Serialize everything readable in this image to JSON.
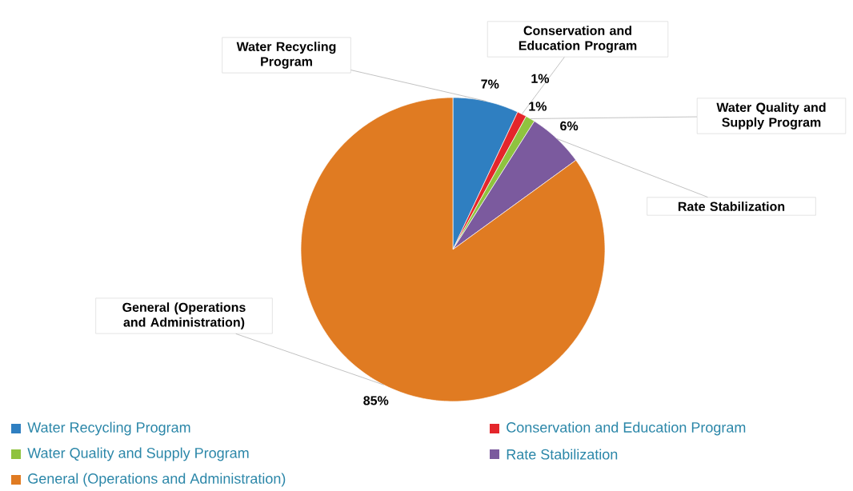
{
  "chart_data": {
    "type": "pie",
    "categories": [
      "Water Recycling Program",
      "Conservation and Education Program",
      "Water Quality and Supply Program",
      "Rate Stabilization",
      "General (Operations and Administration)"
    ],
    "values": [
      7,
      1,
      1,
      6,
      85
    ],
    "value_labels": [
      "7%",
      "1%",
      "1%",
      "6%",
      "85%"
    ],
    "colors": [
      "#2f7fc1",
      "#e4262b",
      "#8fc33f",
      "#7b5a9e",
      "#e07b22"
    ],
    "legend": "bottom"
  }
}
